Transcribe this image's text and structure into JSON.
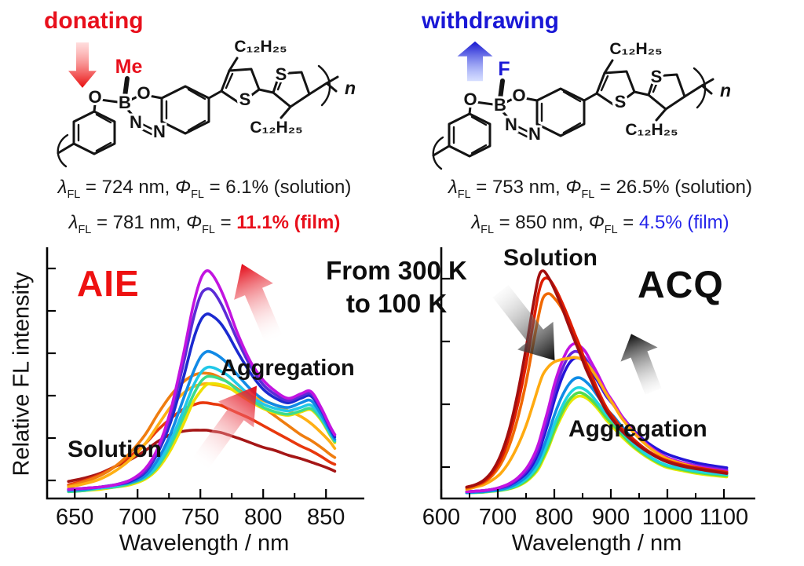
{
  "header": {
    "left": {
      "label": "donating",
      "substituent": "Me"
    },
    "right": {
      "label": "withdrawing",
      "substituent": "F"
    }
  },
  "molecule": {
    "atoms": {
      "o1": "O",
      "b": "B",
      "o2": "O",
      "n1": "N",
      "n2": "N",
      "s1": "S",
      "s2": "S"
    },
    "alkyl": "C₁₂H₂₅",
    "repeat": "n"
  },
  "stats": {
    "left": {
      "line1": {
        "lambda": "λ",
        "phi": "Φ",
        "sub": "FL",
        "a": " = 724 nm, ",
        "b": " = 6.1% (solution)",
        "hl": ""
      },
      "line2": {
        "lambda": "λ",
        "phi": "Φ",
        "sub": "FL",
        "a": " = 781 nm, ",
        "b": " = ",
        "hl": "11.1% (film)"
      }
    },
    "right": {
      "line1": {
        "lambda": "λ",
        "phi": "Φ",
        "sub": "FL",
        "a": " = 753 nm, ",
        "b": " = 26.5% (solution)",
        "hl": ""
      },
      "line2": {
        "lambda": "λ",
        "phi": "Φ",
        "sub": "FL",
        "a": " = 850 nm, ",
        "b": " = ",
        "hl": "4.5% (film)"
      }
    }
  },
  "center_label": {
    "line1": "From 300 K",
    "line2": "to 100 K"
  },
  "chart_data": [
    {
      "id": "aie",
      "type": "line",
      "title": "AIE",
      "title_color": "#ee1111",
      "xlabel": "Wavelength / nm",
      "ylabel": "Relative FL intensity",
      "xlim": [
        628,
        878
      ],
      "xticks": [
        650,
        700,
        750,
        800,
        850
      ],
      "xminor": [
        675,
        725,
        775,
        825
      ],
      "ylim": [
        0,
        1.05
      ],
      "grid": false,
      "annotations": {
        "solution": "Solution",
        "aggregation": "Aggregation"
      },
      "x": [
        645,
        658,
        670,
        682,
        694,
        706,
        716,
        726,
        736,
        744,
        750,
        755,
        760,
        766,
        772,
        780,
        790,
        800,
        810,
        820,
        830,
        838,
        846,
        853,
        857
      ],
      "series": [
        {
          "name": "dark-red-solution",
          "color": "#a51616",
          "values": [
            0.075,
            0.09,
            0.11,
            0.14,
            0.17,
            0.21,
            0.25,
            0.28,
            0.295,
            0.3,
            0.3,
            0.3,
            0.295,
            0.29,
            0.28,
            0.265,
            0.245,
            0.225,
            0.21,
            0.19,
            0.175,
            0.16,
            0.145,
            0.13,
            0.12
          ]
        },
        {
          "name": "orange-red",
          "color": "#e8380d",
          "values": [
            0.06,
            0.08,
            0.105,
            0.14,
            0.185,
            0.24,
            0.3,
            0.35,
            0.39,
            0.41,
            0.42,
            0.42,
            0.415,
            0.41,
            0.395,
            0.375,
            0.35,
            0.32,
            0.29,
            0.26,
            0.23,
            0.21,
            0.185,
            0.16,
            0.15
          ]
        },
        {
          "name": "orange",
          "color": "#ef7d10",
          "values": [
            0.055,
            0.075,
            0.1,
            0.14,
            0.2,
            0.28,
            0.37,
            0.45,
            0.51,
            0.54,
            0.55,
            0.55,
            0.545,
            0.53,
            0.51,
            0.48,
            0.44,
            0.4,
            0.36,
            0.32,
            0.28,
            0.255,
            0.225,
            0.195,
            0.18
          ]
        },
        {
          "name": "amber",
          "color": "#ffb014",
          "values": [
            0.05,
            0.065,
            0.085,
            0.12,
            0.17,
            0.24,
            0.32,
            0.4,
            0.46,
            0.49,
            0.5,
            0.505,
            0.5,
            0.495,
            0.485,
            0.47,
            0.45,
            0.43,
            0.41,
            0.385,
            0.36,
            0.33,
            0.29,
            0.25,
            0.22
          ]
        },
        {
          "name": "yellow",
          "color": "#eee000",
          "values": [
            0.03,
            0.035,
            0.04,
            0.05,
            0.06,
            0.085,
            0.13,
            0.21,
            0.32,
            0.42,
            0.47,
            0.5,
            0.505,
            0.5,
            0.49,
            0.46,
            0.425,
            0.395,
            0.375,
            0.365,
            0.38,
            0.39,
            0.345,
            0.28,
            0.245
          ]
        },
        {
          "name": "spring-green",
          "color": "#3cdc8c",
          "values": [
            0.03,
            0.035,
            0.045,
            0.05,
            0.065,
            0.09,
            0.14,
            0.23,
            0.35,
            0.45,
            0.51,
            0.535,
            0.535,
            0.525,
            0.51,
            0.475,
            0.435,
            0.4,
            0.38,
            0.37,
            0.385,
            0.395,
            0.35,
            0.285,
            0.25
          ]
        },
        {
          "name": "cyan",
          "color": "#22c8e8",
          "values": [
            0.035,
            0.04,
            0.045,
            0.055,
            0.07,
            0.095,
            0.15,
            0.25,
            0.38,
            0.49,
            0.55,
            0.575,
            0.575,
            0.56,
            0.54,
            0.5,
            0.45,
            0.415,
            0.395,
            0.385,
            0.4,
            0.41,
            0.36,
            0.29,
            0.255
          ]
        },
        {
          "name": "dodger-blue",
          "color": "#128ae6",
          "values": [
            0.035,
            0.04,
            0.05,
            0.06,
            0.07,
            0.1,
            0.17,
            0.28,
            0.43,
            0.55,
            0.62,
            0.645,
            0.64,
            0.62,
            0.59,
            0.54,
            0.48,
            0.435,
            0.41,
            0.4,
            0.42,
            0.43,
            0.37,
            0.3,
            0.26
          ]
        },
        {
          "name": "blue",
          "color": "#1b2ad0",
          "values": [
            0.04,
            0.045,
            0.05,
            0.06,
            0.075,
            0.115,
            0.2,
            0.33,
            0.52,
            0.69,
            0.78,
            0.81,
            0.8,
            0.77,
            0.72,
            0.64,
            0.55,
            0.48,
            0.44,
            0.42,
            0.44,
            0.45,
            0.39,
            0.31,
            0.27
          ]
        },
        {
          "name": "violet",
          "color": "#5b2bd6",
          "values": [
            0.04,
            0.045,
            0.05,
            0.06,
            0.08,
            0.12,
            0.21,
            0.36,
            0.58,
            0.78,
            0.89,
            0.92,
            0.91,
            0.86,
            0.79,
            0.69,
            0.58,
            0.5,
            0.455,
            0.43,
            0.45,
            0.46,
            0.395,
            0.315,
            0.28
          ]
        },
        {
          "name": "magenta",
          "color": "#c214e0",
          "values": [
            0.04,
            0.045,
            0.05,
            0.06,
            0.08,
            0.13,
            0.22,
            0.38,
            0.62,
            0.84,
            0.96,
            1.0,
            0.98,
            0.92,
            0.84,
            0.72,
            0.6,
            0.52,
            0.47,
            0.44,
            0.46,
            0.47,
            0.4,
            0.32,
            0.28
          ]
        }
      ]
    },
    {
      "id": "acq",
      "type": "line",
      "title": "ACQ",
      "title_color": "#0d0d0d",
      "xlabel": "Wavelength / nm",
      "ylabel": "",
      "xlim": [
        600,
        1150
      ],
      "xticks": [
        600,
        700,
        800,
        900,
        1000,
        1100
      ],
      "xminor": [
        650,
        750,
        850,
        950,
        1050
      ],
      "ylim": [
        0,
        1.05
      ],
      "grid": false,
      "annotations": {
        "solution": "Solution",
        "aggregation": "Aggregation"
      },
      "x": [
        645,
        660,
        675,
        690,
        705,
        720,
        735,
        750,
        762,
        772,
        780,
        790,
        800,
        812,
        824,
        835,
        845,
        855,
        865,
        878,
        892,
        905,
        920,
        940,
        965,
        995,
        1030,
        1065,
        1105
      ],
      "series": [
        {
          "name": "yellow",
          "color": "#e8e800",
          "values": [
            0.025,
            0.026,
            0.028,
            0.031,
            0.035,
            0.042,
            0.054,
            0.074,
            0.1,
            0.13,
            0.17,
            0.225,
            0.29,
            0.355,
            0.41,
            0.44,
            0.45,
            0.443,
            0.425,
            0.39,
            0.345,
            0.31,
            0.27,
            0.225,
            0.18,
            0.14,
            0.12,
            0.105,
            0.095
          ]
        },
        {
          "name": "green-yellow",
          "color": "#52dc50",
          "values": [
            0.025,
            0.026,
            0.028,
            0.032,
            0.036,
            0.043,
            0.056,
            0.078,
            0.105,
            0.14,
            0.18,
            0.235,
            0.3,
            0.37,
            0.425,
            0.455,
            0.465,
            0.455,
            0.435,
            0.4,
            0.355,
            0.32,
            0.28,
            0.23,
            0.185,
            0.145,
            0.125,
            0.11,
            0.1
          ]
        },
        {
          "name": "cyan",
          "color": "#1ed4e0",
          "values": [
            0.025,
            0.027,
            0.03,
            0.033,
            0.038,
            0.046,
            0.06,
            0.085,
            0.115,
            0.15,
            0.195,
            0.255,
            0.325,
            0.395,
            0.45,
            0.48,
            0.487,
            0.477,
            0.455,
            0.415,
            0.37,
            0.335,
            0.29,
            0.24,
            0.19,
            0.15,
            0.13,
            0.115,
            0.105
          ]
        },
        {
          "name": "dodger-blue",
          "color": "#0f8ce6",
          "values": [
            0.025,
            0.028,
            0.03,
            0.035,
            0.04,
            0.05,
            0.068,
            0.095,
            0.13,
            0.17,
            0.22,
            0.29,
            0.365,
            0.44,
            0.495,
            0.525,
            0.53,
            0.515,
            0.49,
            0.445,
            0.395,
            0.36,
            0.315,
            0.26,
            0.21,
            0.165,
            0.14,
            0.125,
            0.11
          ]
        },
        {
          "name": "blue",
          "color": "#2414d8",
          "values": [
            0.03,
            0.032,
            0.035,
            0.04,
            0.047,
            0.058,
            0.08,
            0.11,
            0.15,
            0.2,
            0.26,
            0.34,
            0.43,
            0.52,
            0.585,
            0.615,
            0.615,
            0.595,
            0.56,
            0.51,
            0.45,
            0.41,
            0.36,
            0.3,
            0.245,
            0.2,
            0.17,
            0.15,
            0.135
          ]
        },
        {
          "name": "violet",
          "color": "#6622dd",
          "values": [
            0.03,
            0.032,
            0.035,
            0.04,
            0.048,
            0.06,
            0.085,
            0.12,
            0.165,
            0.22,
            0.285,
            0.37,
            0.465,
            0.555,
            0.62,
            0.645,
            0.64,
            0.615,
            0.575,
            0.52,
            0.455,
            0.41,
            0.355,
            0.29,
            0.235,
            0.185,
            0.155,
            0.14,
            0.125
          ]
        },
        {
          "name": "magenta",
          "color": "#c214e0",
          "values": [
            0.03,
            0.032,
            0.035,
            0.04,
            0.05,
            0.065,
            0.09,
            0.13,
            0.18,
            0.24,
            0.31,
            0.4,
            0.5,
            0.59,
            0.655,
            0.68,
            0.67,
            0.645,
            0.6,
            0.54,
            0.47,
            0.42,
            0.36,
            0.295,
            0.235,
            0.185,
            0.155,
            0.135,
            0.12
          ]
        },
        {
          "name": "amber",
          "color": "#ffaa10",
          "values": [
            0.04,
            0.05,
            0.06,
            0.08,
            0.11,
            0.16,
            0.23,
            0.32,
            0.41,
            0.49,
            0.545,
            0.58,
            0.6,
            0.61,
            0.615,
            0.62,
            0.615,
            0.6,
            0.57,
            0.52,
            0.46,
            0.41,
            0.35,
            0.29,
            0.23,
            0.18,
            0.15,
            0.13,
            0.115
          ]
        },
        {
          "name": "orange-red",
          "color": "#f06800",
          "values": [
            0.045,
            0.055,
            0.07,
            0.1,
            0.15,
            0.23,
            0.35,
            0.51,
            0.67,
            0.8,
            0.88,
            0.9,
            0.88,
            0.84,
            0.78,
            0.72,
            0.66,
            0.595,
            0.54,
            0.465,
            0.4,
            0.35,
            0.3,
            0.255,
            0.21,
            0.17,
            0.145,
            0.13,
            0.115
          ]
        },
        {
          "name": "red-solution",
          "color": "#df1d00",
          "values": [
            0.05,
            0.06,
            0.075,
            0.11,
            0.17,
            0.27,
            0.41,
            0.59,
            0.76,
            0.9,
            0.96,
            0.965,
            0.93,
            0.87,
            0.8,
            0.73,
            0.67,
            0.6,
            0.545,
            0.47,
            0.4,
            0.355,
            0.305,
            0.26,
            0.21,
            0.17,
            0.145,
            0.13,
            0.115
          ]
        },
        {
          "name": "dark-red-solution",
          "color": "#a30f0f",
          "values": [
            0.05,
            0.06,
            0.08,
            0.12,
            0.19,
            0.3,
            0.46,
            0.66,
            0.84,
            0.97,
            1.0,
            0.97,
            0.92,
            0.85,
            0.77,
            0.7,
            0.64,
            0.575,
            0.52,
            0.45,
            0.385,
            0.34,
            0.295,
            0.25,
            0.205,
            0.165,
            0.14,
            0.125,
            0.11
          ]
        }
      ]
    }
  ]
}
